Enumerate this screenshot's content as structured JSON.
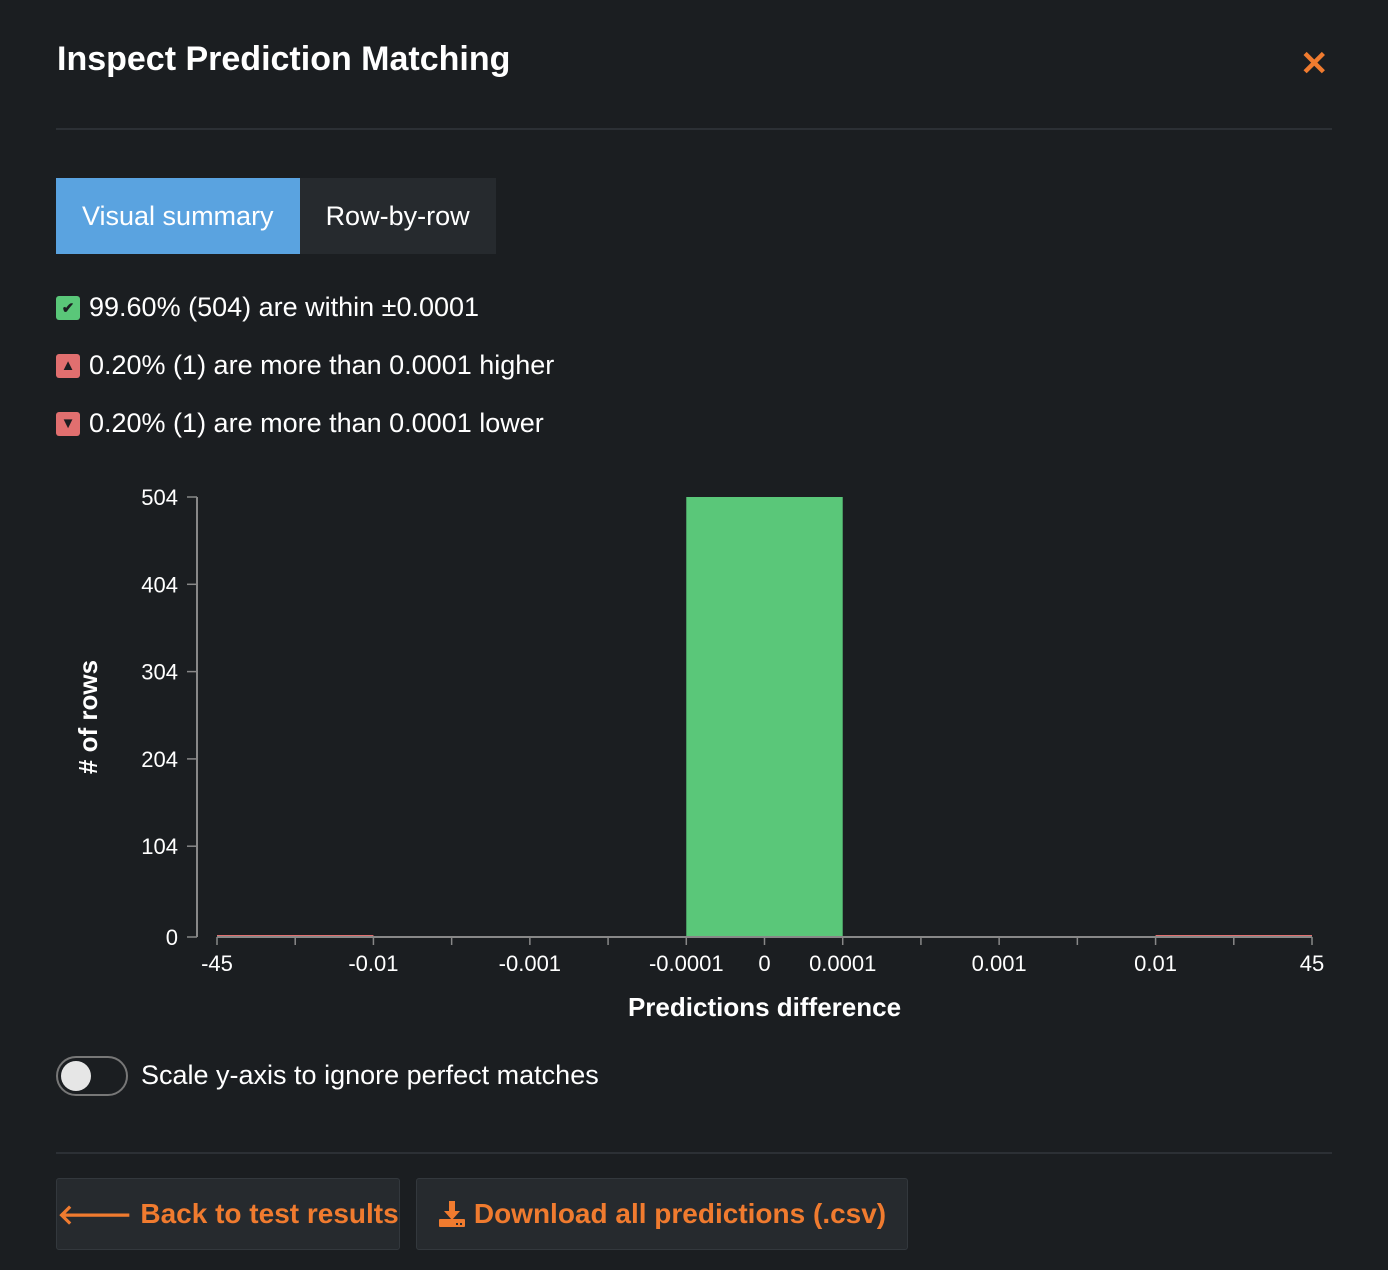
{
  "title": "Inspect Prediction Matching",
  "tabs": [
    {
      "label": "Visual summary",
      "active": true
    },
    {
      "label": "Row-by-row",
      "active": false
    }
  ],
  "stats": [
    {
      "icon": "check-icon",
      "text": "99.60% (504) are within ±0.0001"
    },
    {
      "icon": "caret-up-icon",
      "text": "0.20% (1) are more than 0.0001 higher"
    },
    {
      "icon": "caret-down-icon",
      "text": "0.20% (1) are more than 0.0001 lower"
    }
  ],
  "toggle": {
    "label": "Scale y-axis to ignore perfect matches",
    "on": false
  },
  "buttons": {
    "back": "Back to test results",
    "download": "Download all predictions (.csv)"
  },
  "colors": {
    "accent": "#f07b2f",
    "match": "#5ac779",
    "mismatch": "#e16f6f",
    "tab_active": "#5aa3e0"
  },
  "chart_data": {
    "type": "bar",
    "xlabel": "Predictions difference",
    "ylabel": "# of rows",
    "x_ticks": [
      "-45",
      "-0.01",
      "-0.001",
      "-0.0001",
      "0",
      "0.0001",
      "0.001",
      "0.01",
      "45"
    ],
    "y_ticks": [
      0,
      104,
      204,
      304,
      404,
      504
    ],
    "ylim": [
      0,
      504
    ],
    "bins": [
      {
        "range": [
          "-45",
          "-0.01"
        ],
        "value": 1,
        "kind": "mismatch"
      },
      {
        "range": [
          "-0.01",
          "-0.001"
        ],
        "value": 0,
        "kind": "mismatch"
      },
      {
        "range": [
          "-0.001",
          "-0.0001"
        ],
        "value": 0,
        "kind": "mismatch"
      },
      {
        "range": [
          "-0.0001",
          "0.0001"
        ],
        "value": 504,
        "kind": "match"
      },
      {
        "range": [
          "0.0001",
          "0.001"
        ],
        "value": 0,
        "kind": "mismatch"
      },
      {
        "range": [
          "0.001",
          "0.01"
        ],
        "value": 0,
        "kind": "mismatch"
      },
      {
        "range": [
          "0.01",
          "45"
        ],
        "value": 1,
        "kind": "mismatch"
      }
    ]
  }
}
